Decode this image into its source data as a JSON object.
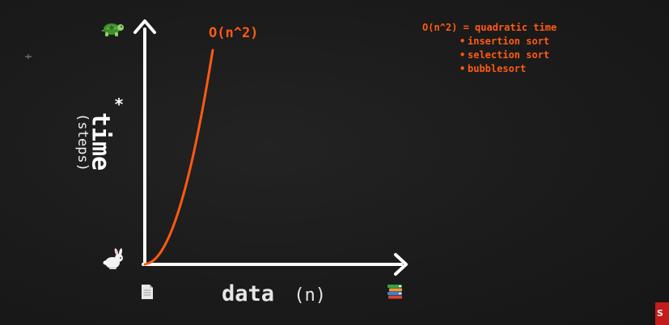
{
  "chart_data": {
    "type": "line",
    "title": "",
    "xlabel": "data",
    "xlabel_unit": "(n)",
    "ylabel": "time",
    "ylabel_unit": "(steps)",
    "ylabel_mark": "*",
    "xlim": [
      0,
      10
    ],
    "ylim": [
      0,
      100
    ],
    "grid": false,
    "series": [
      {
        "name": "O(n^2)",
        "color": "#ff5a14",
        "x": [
          0,
          1,
          2,
          3,
          4,
          5,
          6,
          7,
          8,
          9,
          10
        ],
        "y": [
          0,
          1,
          4,
          9,
          16,
          25,
          36,
          49,
          64,
          81,
          100
        ]
      }
    ],
    "axis_icons": {
      "y_top": "turtle-icon",
      "y_bottom": "rabbit-icon",
      "x_left": "single-page-icon",
      "x_right": "stacked-books-icon"
    }
  },
  "legend": {
    "heading": "O(n^2) = quadratic time",
    "items": [
      "insertion sort",
      "selection sort",
      "bubblesort"
    ]
  },
  "corner_badge": "S",
  "colors": {
    "background": "#1b1b1b",
    "axis": "#ffffff",
    "accent": "#ff5a14",
    "badge": "#c21c1c"
  }
}
